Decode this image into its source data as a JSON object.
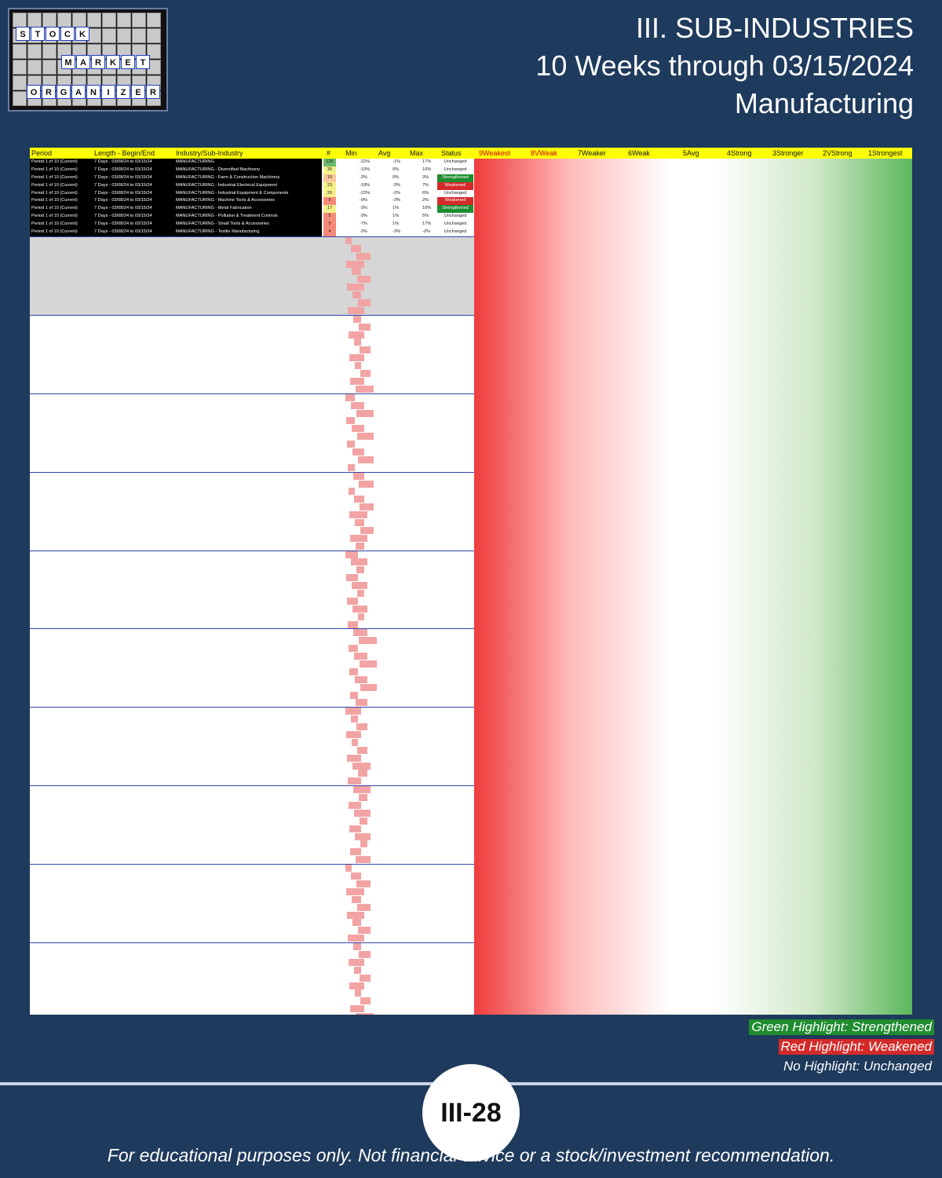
{
  "logo": {
    "row1": [
      "S",
      "T",
      "O",
      "C",
      "K"
    ],
    "row2": [
      "M",
      "A",
      "R",
      "K",
      "E",
      "T"
    ],
    "row3": [
      "O",
      "R",
      "G",
      "A",
      "N",
      "I",
      "Z",
      "E",
      "R"
    ]
  },
  "title": {
    "line1": "III. SUB-INDUSTRIES",
    "line2": "10 Weeks through 03/15/2024",
    "line3": "Manufacturing"
  },
  "table": {
    "headers": {
      "period": "Period",
      "length": "Length - Begin/End",
      "industry": "Industry/Sub-Industry",
      "count": "#",
      "min": "Min",
      "avg": "Avg",
      "max": "Max",
      "status": "Status",
      "c9": "9Weakest",
      "c8": "8VWeak",
      "c7": "7Weaker",
      "c6": "6Weak",
      "c5": "5Avg",
      "c4": "4Strong",
      "c3": "3Stronger",
      "c2": "2VStrong",
      "c1": "1Strongest"
    },
    "rows": [
      {
        "p": "Period 1 of 10 (Current)",
        "l": "7 Days - 03/08/24 to 03/15/24",
        "i": "MANUFACTURING",
        "n": "125",
        "mn": "-22%",
        "av": "-1%",
        "mx": "17%",
        "st": "Unchanged"
      },
      {
        "p": "Period 1 of 10 (Current)",
        "l": "7 Days - 03/08/24 to 03/15/24",
        "i": "MANUFACTURING - Diversified Machinery",
        "n": "35",
        "mn": "-10%",
        "av": "0%",
        "mx": "10%",
        "st": "Unchanged"
      },
      {
        "p": "Period 1 of 10 (Current)",
        "l": "7 Days - 03/08/24 to 03/15/24",
        "i": "MANUFACTURING - Farm & Construction Machinery",
        "n": "10",
        "mn": "-3%",
        "av": "0%",
        "mx": "3%",
        "st": "Strengthened"
      },
      {
        "p": "Period 1 of 10 (Current)",
        "l": "7 Days - 03/08/24 to 03/15/24",
        "i": "MANUFACTURING - Industrial Electrical Equipment",
        "n": "23",
        "mn": "-19%",
        "av": "-3%",
        "mx": "7%",
        "st": "Weakened"
      },
      {
        "p": "Period 1 of 10 (Current)",
        "l": "7 Days - 03/08/24 to 03/15/24",
        "i": "MANUFACTURING - Industrial Equipment & Components",
        "n": "20",
        "mn": "-22%",
        "av": "-2%",
        "mx": "6%",
        "st": "Unchanged"
      },
      {
        "p": "Period 1 of 10 (Current)",
        "l": "7 Days - 03/08/24 to 03/15/24",
        "i": "MANUFACTURING - Machine Tools & Accessories",
        "n": "6",
        "mn": "-9%",
        "av": "-3%",
        "mx": "2%",
        "st": "Weakened"
      },
      {
        "p": "Period 1 of 10 (Current)",
        "l": "7 Days - 03/08/24 to 03/15/24",
        "i": "MANUFACTURING - Metal Fabrication",
        "n": "17",
        "mn": "-3%",
        "av": "1%",
        "mx": "10%",
        "st": "Strengthened"
      },
      {
        "p": "Period 1 of 10 (Current)",
        "l": "7 Days - 03/08/24 to 03/15/24",
        "i": "MANUFACTURING - Pollution & Treatment Controls",
        "n": "5",
        "mn": "-3%",
        "av": "1%",
        "mx": "5%",
        "st": "Unchanged"
      },
      {
        "p": "Period 1 of 10 (Current)",
        "l": "7 Days - 03/08/24 to 03/15/24",
        "i": "MANUFACTURING - Small Tools & Accessories",
        "n": "5",
        "mn": "-7%",
        "av": "1%",
        "mx": "17%",
        "st": "Unchanged"
      },
      {
        "p": "Period 1 of 10 (Current)",
        "l": "7 Days - 03/08/24 to 03/15/24",
        "i": "MANUFACTURING - Textile Manufacturing",
        "n": "4",
        "mn": "-3%",
        "av": "-3%",
        "mx": "-2%",
        "st": "Unchanged"
      }
    ]
  },
  "legend": {
    "green": "Green Highlight: Strengthened",
    "red": "Red Highlight: Weakened",
    "none": "No Highlight: Unchanged"
  },
  "page_number": "III-28",
  "disclaimer": "For educational purposes only. Not financial advice or a stock/investment recommendation.",
  "colors": {
    "background": "#1e3a5c",
    "strengthened": "#1f8c2f",
    "weakened": "#d42a2a",
    "header": "#ffff00"
  }
}
